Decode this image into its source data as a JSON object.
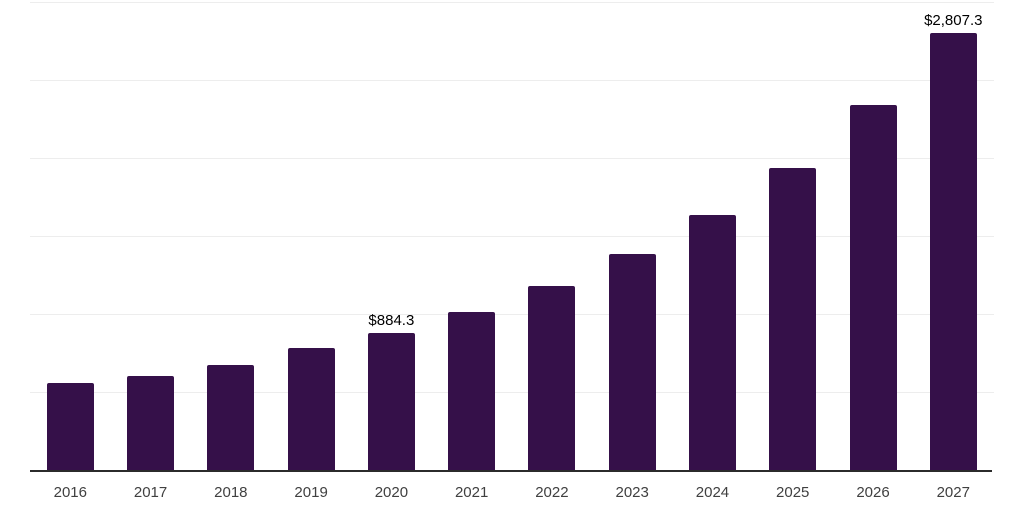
{
  "chart_data": {
    "type": "bar",
    "title": "",
    "xlabel": "",
    "ylabel": "",
    "categories": [
      "2016",
      "2017",
      "2018",
      "2019",
      "2020",
      "2021",
      "2022",
      "2023",
      "2024",
      "2025",
      "2026",
      "2027"
    ],
    "values": [
      560,
      608,
      677,
      785,
      884.3,
      1016,
      1182,
      1387,
      1637,
      1937,
      2341,
      2807.3
    ],
    "annotations": [
      {
        "category": "2020",
        "index": 4,
        "text": "$884.3"
      },
      {
        "category": "2027",
        "index": 11,
        "text": "$2,807.3"
      }
    ],
    "ylim": [
      0,
      3000
    ],
    "gridline_values": [
      500,
      1000,
      1500,
      2000,
      2500,
      3000
    ],
    "grid": "horizontal-only",
    "legend": "none",
    "y_axis_tick_labels": "hidden",
    "colors": {
      "bar": "#351049",
      "gridline": "#ededed",
      "axis_line": "#2b2b2b",
      "tick_label": "#404040",
      "annotation_label": "#000000",
      "background": "#ffffff"
    }
  }
}
